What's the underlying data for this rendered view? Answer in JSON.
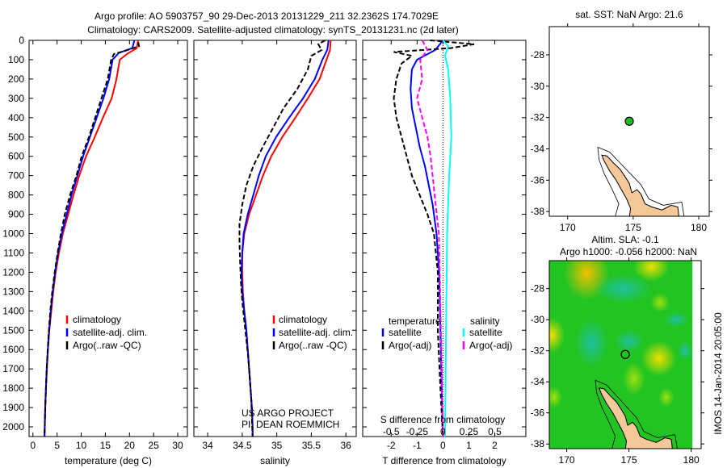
{
  "title_line1": "Argo profile: AO 5903757_90 29-Dec-2013 20131229_211 32.2362S 174.7029E",
  "title_line2": "Climatology: CARS2009. Satellite-adjusted climatology: synTS_20131231.nc (2d later)",
  "side_stamp": "IMOS 14-Jan-2014 20:05:00",
  "colors": {
    "climatology": "#ff0000",
    "satellite": "#0000ff",
    "argo": "#000000",
    "sal_satellite": "#00ffff",
    "sal_argo": "#ff00ff",
    "land": "#f5c89a"
  },
  "chart_data": [
    {
      "type": "line",
      "id": "temperature",
      "xlabel": "temperature (deg C)",
      "ylabel": "depth",
      "xlim": [
        -0.8,
        32
      ],
      "ylim": [
        2050,
        0
      ],
      "xticks": [
        0,
        5,
        10,
        15,
        20,
        25,
        30
      ],
      "yticks": [
        0,
        100,
        200,
        300,
        400,
        500,
        600,
        700,
        800,
        900,
        1000,
        1100,
        1200,
        1300,
        1400,
        1500,
        1600,
        1700,
        1800,
        1900,
        2000
      ],
      "legend": [
        "climatology",
        "satellite-adj. clim.",
        "Argo(..raw -QC)"
      ],
      "legend_position": "bottom-center",
      "series": [
        {
          "name": "climatology",
          "color": "#ff0000",
          "dash": false,
          "points": [
            [
              21.8,
              0
            ],
            [
              21.5,
              40
            ],
            [
              19.5,
              70
            ],
            [
              18,
              100
            ],
            [
              17.3,
              200
            ],
            [
              16.3,
              300
            ],
            [
              14.5,
              400
            ],
            [
              12.8,
              500
            ],
            [
              11,
              600
            ],
            [
              9.6,
              700
            ],
            [
              8.4,
              800
            ],
            [
              7.3,
              900
            ],
            [
              6.2,
              1000
            ],
            [
              5.4,
              1100
            ],
            [
              4.7,
              1200
            ],
            [
              4.2,
              1300
            ],
            [
              3.8,
              1400
            ],
            [
              3.4,
              1500
            ],
            [
              3.1,
              1600
            ],
            [
              2.9,
              1700
            ],
            [
              2.7,
              1800
            ],
            [
              2.55,
              1900
            ],
            [
              2.45,
              2000
            ],
            [
              2.4,
              2050
            ]
          ]
        },
        {
          "name": "satellite-adj. clim.",
          "color": "#0000ff",
          "dash": false,
          "points": [
            [
              21,
              0
            ],
            [
              20.6,
              40
            ],
            [
              17.8,
              65
            ],
            [
              16.5,
              100
            ],
            [
              15.8,
              200
            ],
            [
              14.6,
              300
            ],
            [
              13.2,
              400
            ],
            [
              11.8,
              500
            ],
            [
              10.4,
              600
            ],
            [
              9.2,
              700
            ],
            [
              8,
              800
            ],
            [
              7,
              900
            ],
            [
              6,
              1000
            ],
            [
              5.2,
              1100
            ],
            [
              4.6,
              1200
            ],
            [
              4.1,
              1300
            ],
            [
              3.7,
              1400
            ],
            [
              3.35,
              1500
            ],
            [
              3.1,
              1600
            ],
            [
              2.85,
              1700
            ],
            [
              2.7,
              1800
            ],
            [
              2.55,
              1900
            ],
            [
              2.45,
              2000
            ],
            [
              2.4,
              2050
            ]
          ]
        },
        {
          "name": "Argo(..raw -QC)",
          "color": "#000000",
          "dash": true,
          "points": [
            [
              21.8,
              10
            ],
            [
              22,
              30
            ],
            [
              19,
              55
            ],
            [
              16.8,
              70
            ],
            [
              16.2,
              100
            ],
            [
              15.5,
              200
            ],
            [
              14.2,
              300
            ],
            [
              12.9,
              400
            ],
            [
              11.6,
              500
            ],
            [
              10.1,
              600
            ],
            [
              9,
              700
            ],
            [
              7.7,
              800
            ],
            [
              6.6,
              900
            ],
            [
              5.8,
              1000
            ],
            [
              5.1,
              1100
            ],
            [
              4.5,
              1200
            ],
            [
              4,
              1300
            ],
            [
              3.6,
              1400
            ],
            [
              3.3,
              1500
            ],
            [
              3.05,
              1600
            ],
            [
              2.85,
              1700
            ],
            [
              2.7,
              1800
            ],
            [
              2.55,
              1900
            ],
            [
              2.45,
              2000
            ],
            [
              2.4,
              2050
            ]
          ]
        }
      ]
    },
    {
      "type": "line",
      "id": "salinity",
      "xlabel": "salinity",
      "xlim": [
        33.8,
        36.15
      ],
      "ylim": [
        2050,
        0
      ],
      "xticks": [
        34,
        34.5,
        35,
        35.5,
        36
      ],
      "legend": [
        "climatology",
        "satellite-adj. clim.",
        "Argo(..raw -QC)"
      ],
      "legend_position": "bottom-center",
      "annotation": [
        "US ARGO PROJECT",
        "PI: DEAN ROEMMICH"
      ],
      "series": [
        {
          "name": "climatology",
          "color": "#ff0000",
          "dash": false,
          "points": [
            [
              35.78,
              0
            ],
            [
              35.77,
              50
            ],
            [
              35.72,
              100
            ],
            [
              35.62,
              200
            ],
            [
              35.45,
              300
            ],
            [
              35.27,
              400
            ],
            [
              35.08,
              500
            ],
            [
              34.92,
              600
            ],
            [
              34.8,
              700
            ],
            [
              34.7,
              800
            ],
            [
              34.6,
              900
            ],
            [
              34.53,
              1000
            ],
            [
              34.5,
              1100
            ],
            [
              34.5,
              1200
            ],
            [
              34.51,
              1300
            ],
            [
              34.53,
              1400
            ],
            [
              34.56,
              1500
            ],
            [
              34.58,
              1600
            ],
            [
              34.6,
              1700
            ],
            [
              34.62,
              1800
            ],
            [
              34.64,
              1900
            ],
            [
              34.65,
              2000
            ],
            [
              34.65,
              2050
            ]
          ]
        },
        {
          "name": "satellite-adj. clim.",
          "color": "#0000ff",
          "dash": false,
          "points": [
            [
              35.75,
              0
            ],
            [
              35.73,
              50
            ],
            [
              35.66,
              100
            ],
            [
              35.55,
              200
            ],
            [
              35.38,
              300
            ],
            [
              35.18,
              400
            ],
            [
              34.99,
              500
            ],
            [
              34.84,
              600
            ],
            [
              34.74,
              700
            ],
            [
              34.66,
              800
            ],
            [
              34.58,
              900
            ],
            [
              34.52,
              1000
            ],
            [
              34.5,
              1100
            ],
            [
              34.49,
              1200
            ],
            [
              34.5,
              1300
            ],
            [
              34.53,
              1400
            ],
            [
              34.56,
              1500
            ],
            [
              34.58,
              1600
            ],
            [
              34.6,
              1700
            ],
            [
              34.62,
              1800
            ],
            [
              34.64,
              1900
            ],
            [
              34.65,
              2000
            ],
            [
              34.65,
              2050
            ]
          ]
        },
        {
          "name": "Argo(..raw -QC)",
          "color": "#000000",
          "dash": true,
          "points": [
            [
              35.7,
              0
            ],
            [
              35.6,
              20
            ],
            [
              35.65,
              50
            ],
            [
              35.5,
              80
            ],
            [
              35.45,
              150
            ],
            [
              35.3,
              250
            ],
            [
              35.1,
              350
            ],
            [
              34.95,
              450
            ],
            [
              34.8,
              550
            ],
            [
              34.66,
              650
            ],
            [
              34.56,
              750
            ],
            [
              34.5,
              850
            ],
            [
              34.46,
              950
            ],
            [
              34.46,
              1050
            ],
            [
              34.47,
              1150
            ],
            [
              34.48,
              1250
            ],
            [
              34.5,
              1350
            ],
            [
              34.53,
              1450
            ],
            [
              34.56,
              1550
            ],
            [
              34.59,
              1650
            ],
            [
              34.61,
              1750
            ],
            [
              34.63,
              1850
            ],
            [
              34.64,
              1950
            ],
            [
              34.65,
              2050
            ]
          ]
        }
      ]
    },
    {
      "type": "line",
      "id": "difference",
      "xlabel": "T difference from climatology",
      "x2label": "S difference from climatology",
      "xlim": [
        -3.1,
        3.2
      ],
      "ylim": [
        2050,
        0
      ],
      "xticks": [
        -2,
        -1,
        0,
        1,
        2
      ],
      "x2ticks": [
        -0.5,
        -0.25,
        0,
        0.25,
        0.5
      ],
      "x2_per_x": 0.25,
      "legend_titles": [
        "temperature",
        "salinity"
      ],
      "legend": [
        "satellite",
        "Argo(-adj)",
        "satellite",
        "Argo(-adj)"
      ],
      "legend_position": "bottom",
      "series": [
        {
          "name": "temperature satellite",
          "axis": "T",
          "color": "#0000ff",
          "dash": false,
          "points": [
            [
              0,
              0
            ],
            [
              -0.3,
              50
            ],
            [
              -1,
              100
            ],
            [
              -1.2,
              150
            ],
            [
              -1.25,
              250
            ],
            [
              -1.2,
              350
            ],
            [
              -1.05,
              450
            ],
            [
              -0.9,
              550
            ],
            [
              -0.7,
              650
            ],
            [
              -0.55,
              750
            ],
            [
              -0.4,
              850
            ],
            [
              -0.25,
              1000
            ],
            [
              -0.15,
              1200
            ],
            [
              -0.1,
              1500
            ],
            [
              -0.05,
              1800
            ],
            [
              0,
              2050
            ]
          ]
        },
        {
          "name": "temperature Argo(-adj)",
          "axis": "T",
          "color": "#000000",
          "dash": true,
          "points": [
            [
              -0.5,
              0
            ],
            [
              1.2,
              20
            ],
            [
              0.3,
              40
            ],
            [
              -1.9,
              60
            ],
            [
              -1.2,
              80
            ],
            [
              -1.6,
              120
            ],
            [
              -1.8,
              200
            ],
            [
              -1.9,
              300
            ],
            [
              -1.8,
              400
            ],
            [
              -1.6,
              500
            ],
            [
              -1.4,
              600
            ],
            [
              -1.2,
              700
            ],
            [
              -0.9,
              800
            ],
            [
              -0.6,
              900
            ],
            [
              -0.35,
              1000
            ],
            [
              -0.2,
              1200
            ],
            [
              -0.2,
              1500
            ],
            [
              -0.1,
              1800
            ],
            [
              0,
              2050
            ]
          ]
        },
        {
          "name": "salinity satellite",
          "axis": "S",
          "color": "#00ffff",
          "dash": false,
          "points": [
            [
              0,
              0
            ],
            [
              0.05,
              30
            ],
            [
              0.02,
              80
            ],
            [
              0.05,
              150
            ],
            [
              0.07,
              300
            ],
            [
              0.08,
              500
            ],
            [
              0.06,
              700
            ],
            [
              0.04,
              1000
            ],
            [
              0.03,
              1500
            ],
            [
              0.02,
              2050
            ]
          ]
        },
        {
          "name": "salinity Argo(-adj)",
          "axis": "S",
          "color": "#ff00ff",
          "dash": true,
          "points": [
            [
              -0.2,
              0
            ],
            [
              -0.15,
              50
            ],
            [
              -0.22,
              100
            ],
            [
              -0.2,
              200
            ],
            [
              -0.25,
              300
            ],
            [
              -0.2,
              400
            ],
            [
              -0.15,
              500
            ],
            [
              -0.12,
              600
            ],
            [
              -0.08,
              800
            ],
            [
              -0.04,
              1000
            ],
            [
              -0.02,
              1500
            ],
            [
              0,
              2050
            ]
          ]
        }
      ]
    },
    {
      "type": "map",
      "id": "sst-map",
      "title": "sat. SST: NaN Argo: 21.6",
      "xlim": [
        168.6,
        180.8
      ],
      "ylim": [
        -38.3,
        -26.2
      ],
      "xticks": [
        170,
        175,
        180
      ],
      "yticks": [
        -28,
        -30,
        -32,
        -34,
        -36,
        -38
      ],
      "point": [
        174.7029,
        -32.2362
      ]
    },
    {
      "type": "heatmap",
      "id": "sla-map",
      "title_line1": "Altim. SLA: -0.1",
      "title_line2": "Argo h1000: -0.056 h2000: NaN",
      "xlim": [
        168.6,
        180.8
      ],
      "ylim": [
        -38.3,
        -26.2
      ],
      "xticks": [
        170,
        175,
        180
      ],
      "yticks": [
        -28,
        -30,
        -32,
        -34,
        -36,
        -38
      ],
      "point": [
        174.7029,
        -32.2362
      ]
    }
  ]
}
